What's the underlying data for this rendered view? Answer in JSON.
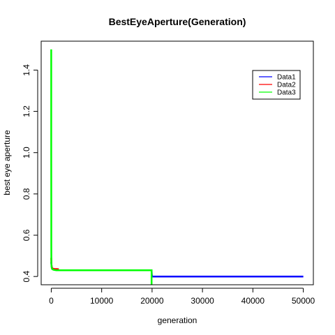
{
  "chart_data": {
    "type": "line",
    "title": "BestEyeAperture(Generation)",
    "xlabel": "generation",
    "ylabel": "best eye aperture",
    "xlim": [
      -2000,
      52000
    ],
    "ylim": [
      0.36,
      1.54
    ],
    "xticks": [
      0,
      10000,
      20000,
      30000,
      40000,
      50000
    ],
    "yticks": [
      0.4,
      0.6,
      0.8,
      1.0,
      1.2,
      1.4
    ],
    "ytick_labels": [
      "0.4",
      "0.6",
      "0.8",
      "1.0",
      "1.2",
      "1.4"
    ],
    "legend_position": "top-right",
    "series": [
      {
        "name": "Data1",
        "color": "#0000ff",
        "x": [
          0,
          20,
          50,
          100,
          200,
          300,
          400,
          500,
          700,
          1000,
          1500,
          3000,
          10000,
          19900,
          19950,
          20000,
          30000,
          40000,
          50000
        ],
        "y": [
          0.47,
          0.46,
          0.455,
          0.445,
          0.44,
          0.438,
          0.436,
          0.435,
          0.434,
          0.432,
          0.43,
          0.43,
          0.43,
          0.43,
          0.41,
          0.4,
          0.4,
          0.4,
          0.4
        ]
      },
      {
        "name": "Data2",
        "color": "#ff0000",
        "x": [
          0,
          20,
          50,
          100,
          200,
          300,
          500,
          800,
          1000,
          1500
        ],
        "y": [
          0.49,
          0.47,
          0.455,
          0.445,
          0.44,
          0.438,
          0.437,
          0.436,
          0.436,
          0.435
        ]
      },
      {
        "name": "Data3",
        "color": "#00ff00",
        "x": [
          0,
          0,
          5,
          10,
          20,
          50,
          100,
          200,
          500,
          1000,
          5000,
          10000,
          15000,
          19900,
          19900
        ],
        "y": [
          1.5,
          1.0,
          0.7,
          0.55,
          0.47,
          0.45,
          0.44,
          0.435,
          0.432,
          0.43,
          0.43,
          0.43,
          0.43,
          0.43,
          0.36
        ]
      }
    ]
  }
}
